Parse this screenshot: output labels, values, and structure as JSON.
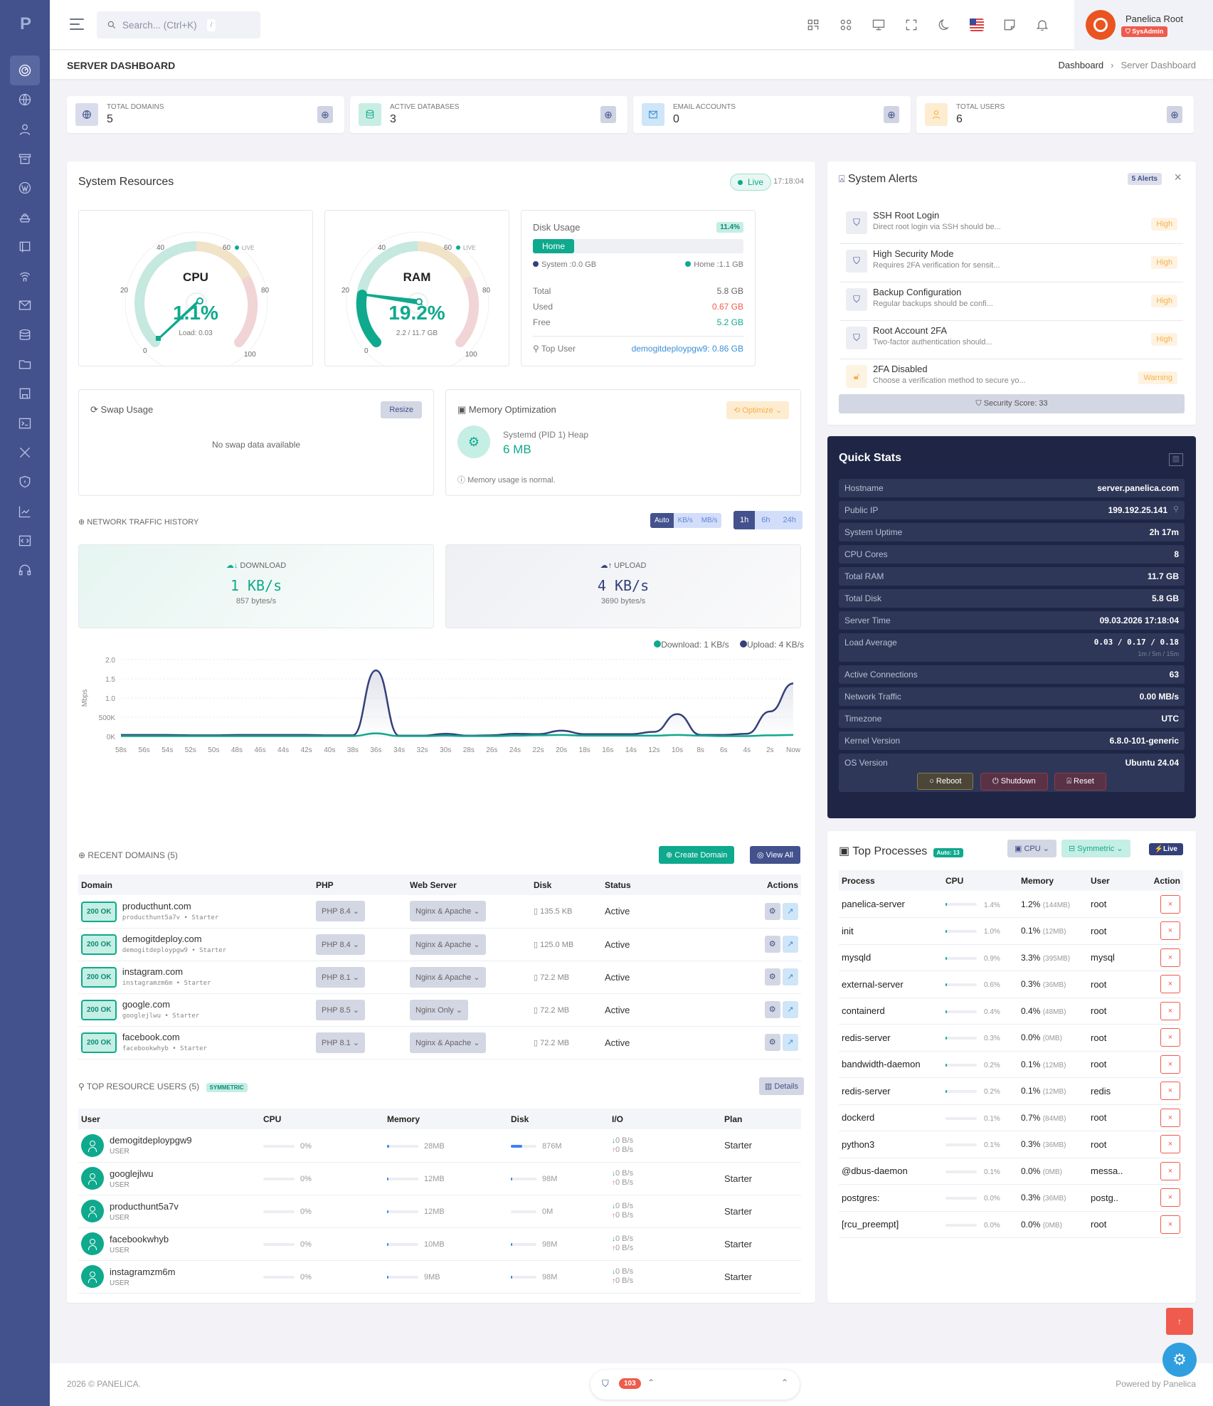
{
  "header": {
    "search_placeholder": "Search... (Ctrl+K)",
    "search_kbd": "/",
    "user_name": "Panelica Root",
    "user_role": "SysAdmin",
    "icons": [
      "qr-icon",
      "apps-icon",
      "monitor-icon",
      "fullscreen-icon",
      "moon-icon",
      "flag-us-icon",
      "note-icon",
      "bell-icon"
    ]
  },
  "sidebar": {
    "items": [
      "dashboard",
      "domains",
      "users",
      "packages",
      "wordpress",
      "docker",
      "backups",
      "wireless",
      "email",
      "databases",
      "files",
      "storage",
      "terminal",
      "tools",
      "security",
      "statistics",
      "developer",
      "support"
    ]
  },
  "page": {
    "title": "SERVER DASHBOARD",
    "breadcrumb": [
      "Dashboard",
      "Server Dashboard"
    ]
  },
  "stats": [
    {
      "label": "TOTAL DOMAINS",
      "value": "5",
      "color": "#43518d",
      "bg": "#d9dcea"
    },
    {
      "label": "ACTIVE DATABASES",
      "value": "3",
      "color": "#0fa98d",
      "bg": "#c8eee4"
    },
    {
      "label": "EMAIL ACCOUNTS",
      "value": "0",
      "color": "#3b8fd8",
      "bg": "#cfe5f8"
    },
    {
      "label": "TOTAL USERS",
      "value": "6",
      "color": "#f5b14a",
      "bg": "#fdecd0"
    }
  ],
  "system_resources": {
    "title": "System Resources",
    "live_label": "Live",
    "time": "17:18:04",
    "cpu": {
      "label": "CPU",
      "value": "1.1%",
      "sub": "Load: 0.03",
      "live": "LIVE",
      "ticks": [
        "0",
        "20",
        "40",
        "60",
        "80",
        "100"
      ]
    },
    "ram": {
      "label": "RAM",
      "value": "19.2%",
      "sub": "2.2 / 11.7 GB",
      "live": "LIVE",
      "ticks": [
        "0",
        "20",
        "40",
        "60",
        "80",
        "100"
      ]
    },
    "disk": {
      "title": "Disk Usage",
      "percent": "11.4%",
      "bar_label": "Home",
      "legend_system": "System :0.0 GB",
      "legend_home": "Home :1.1 GB",
      "total_label": "Total",
      "total": "5.8 GB",
      "used_label": "Used",
      "used": "0.67 GB",
      "free_label": "Free",
      "free": "5.2 GB",
      "top_user_label": "Top User",
      "top_user": "demogitdeploypgw9: 0.86 GB"
    },
    "swap": {
      "title": "Swap Usage",
      "resize_label": "Resize",
      "empty": "No swap data available"
    },
    "memory_opt": {
      "title": "Memory Optimization",
      "optimize_label": "Optimize",
      "process": "Systemd (PID 1) Heap",
      "value": "6 MB",
      "status": "Memory usage is normal."
    }
  },
  "network": {
    "title": "NETWORK TRAFFIC HISTORY",
    "unit_buttons": [
      "Auto",
      "KB/s",
      "MB/s"
    ],
    "range_buttons": [
      "1h",
      "6h",
      "24h"
    ],
    "download_label": "DOWNLOAD",
    "download_value": "1 KB/s",
    "download_bytes": "857 bytes/s",
    "upload_label": "UPLOAD",
    "upload_value": "4 KB/s",
    "upload_bytes": "3690 bytes/s",
    "legend_download": "Download: 1 KB/s",
    "legend_upload": "Upload: 4 KB/s"
  },
  "chart_data": {
    "type": "line",
    "title": "Network Traffic History",
    "xlabel": "",
    "ylabel": "Mbps",
    "y_tick_labels": [
      "0K",
      "500K",
      "1.0",
      "1.5",
      "2.0"
    ],
    "ylim": [
      0,
      2.0
    ],
    "x": [
      "58s",
      "56s",
      "54s",
      "52s",
      "50s",
      "48s",
      "46s",
      "44s",
      "42s",
      "40s",
      "38s",
      "36s",
      "34s",
      "32s",
      "30s",
      "28s",
      "26s",
      "24s",
      "22s",
      "20s",
      "18s",
      "16s",
      "14s",
      "12s",
      "10s",
      "8s",
      "6s",
      "4s",
      "2s",
      "Now"
    ],
    "series": [
      {
        "name": "Download",
        "color": "#0fa98d",
        "values": [
          0.01,
          0.01,
          0.01,
          0.01,
          0.01,
          0.01,
          0.01,
          0.01,
          0.01,
          0.01,
          0.01,
          0.08,
          0.01,
          0.01,
          0.02,
          0.01,
          0.01,
          0.02,
          0.03,
          0.04,
          0.02,
          0.02,
          0.02,
          0.02,
          0.04,
          0.02,
          0.01,
          0.01,
          0.03,
          0.04
        ]
      },
      {
        "name": "Upload",
        "color": "#34407a",
        "values": [
          0.04,
          0.04,
          0.04,
          0.03,
          0.03,
          0.04,
          0.04,
          0.04,
          0.04,
          0.03,
          0.03,
          1.72,
          0.02,
          0.02,
          0.07,
          0.02,
          0.03,
          0.07,
          0.06,
          0.15,
          0.06,
          0.06,
          0.06,
          0.12,
          0.58,
          0.04,
          0.04,
          0.07,
          0.65,
          1.38
        ]
      }
    ],
    "grid": true,
    "legend_position": "top-right"
  },
  "domains": {
    "title": "RECENT DOMAINS (5)",
    "create_label": "Create Domain",
    "view_all_label": "View All",
    "columns": [
      "Domain",
      "PHP",
      "Web Server",
      "Disk",
      "Status",
      "Actions"
    ],
    "rows": [
      {
        "status_code": "200 OK",
        "name": "producthunt.com",
        "user": "producthunt5a7v • Starter",
        "php": "PHP 8.4",
        "server": "Nginx & Apache",
        "disk": "135.5 KB",
        "status": "Active"
      },
      {
        "status_code": "200 OK",
        "name": "demogitdeploy.com",
        "user": "demogitdeploypgw9 • Starter",
        "php": "PHP 8.4",
        "server": "Nginx & Apache",
        "disk": "125.0 MB",
        "status": "Active"
      },
      {
        "status_code": "200 OK",
        "name": "instagram.com",
        "user": "instagramzm6m • Starter",
        "php": "PHP 8.1",
        "server": "Nginx & Apache",
        "disk": "72.2 MB",
        "status": "Active"
      },
      {
        "status_code": "200 OK",
        "name": "google.com",
        "user": "googlejlwu • Starter",
        "php": "PHP 8.5",
        "server": "Nginx Only",
        "disk": "72.2 MB",
        "status": "Active"
      },
      {
        "status_code": "200 OK",
        "name": "facebook.com",
        "user": "facebookwhyb • Starter",
        "php": "PHP 8.1",
        "server": "Nginx & Apache",
        "disk": "72.2 MB",
        "status": "Active"
      }
    ]
  },
  "resource_users": {
    "title": "TOP RESOURCE USERS (5)",
    "badge": "SYMMETRIC",
    "details_label": "Details",
    "columns": [
      "User",
      "CPU",
      "Memory",
      "Disk",
      "I/O",
      "Plan"
    ],
    "rows": [
      {
        "name": "demogitdeploypgw9",
        "role": "USER",
        "cpu": "0%",
        "mem": "28MB",
        "disk": "876M",
        "io_down": "0 B/s",
        "io_up": "0 B/s",
        "plan": "Starter",
        "disk_pct": 45,
        "mem_pct": 3
      },
      {
        "name": "googlejlwu",
        "role": "USER",
        "cpu": "0%",
        "mem": "12MB",
        "disk": "98M",
        "io_down": "0 B/s",
        "io_up": "0 B/s",
        "plan": "Starter",
        "disk_pct": 5,
        "mem_pct": 2
      },
      {
        "name": "producthunt5a7v",
        "role": "USER",
        "cpu": "0%",
        "mem": "12MB",
        "disk": "0M",
        "io_down": "0 B/s",
        "io_up": "0 B/s",
        "plan": "Starter",
        "disk_pct": 0,
        "mem_pct": 2
      },
      {
        "name": "facebookwhyb",
        "role": "USER",
        "cpu": "0%",
        "mem": "10MB",
        "disk": "98M",
        "io_down": "0 B/s",
        "io_up": "0 B/s",
        "plan": "Starter",
        "disk_pct": 5,
        "mem_pct": 2
      },
      {
        "name": "instagramzm6m",
        "role": "USER",
        "cpu": "0%",
        "mem": "9MB",
        "disk": "98M",
        "io_down": "0 B/s",
        "io_up": "0 B/s",
        "plan": "Starter",
        "disk_pct": 5,
        "mem_pct": 2
      }
    ]
  },
  "alerts": {
    "title": "System Alerts",
    "count_label": "5 Alerts",
    "items": [
      {
        "title": "SSH Root Login",
        "desc": "Direct root login via SSH should be...",
        "level": "High"
      },
      {
        "title": "High Security Mode",
        "desc": "Requires 2FA verification for sensit...",
        "level": "High"
      },
      {
        "title": "Backup Configuration",
        "desc": "Regular backups should be confi...",
        "level": "High"
      },
      {
        "title": "Root Account 2FA",
        "desc": "Two-factor authentication should...",
        "level": "High"
      },
      {
        "title": "2FA Disabled",
        "desc": "Choose a verification method to secure yo...",
        "level": "Warning"
      }
    ],
    "security_score": "Security Score: 33"
  },
  "quick_stats": {
    "title": "Quick Stats",
    "rows": [
      {
        "k": "Hostname",
        "v": "server.panelica.com"
      },
      {
        "k": "Public IP",
        "v": "199.192.25.141"
      },
      {
        "k": "System Uptime",
        "v": "2h 17m"
      },
      {
        "k": "CPU Cores",
        "v": "8"
      },
      {
        "k": "Total RAM",
        "v": "11.7 GB"
      },
      {
        "k": "Total Disk",
        "v": "5.8 GB"
      },
      {
        "k": "Server Time",
        "v": "09.03.2026 17:18:04"
      },
      {
        "k": "Load Average",
        "v": "0.03 / 0.17 / 0.18",
        "sub": "1m / 5m / 15m"
      },
      {
        "k": "Active Connections",
        "v": "63"
      },
      {
        "k": "Network Traffic",
        "v": "0.00 MB/s"
      },
      {
        "k": "Timezone",
        "v": "UTC"
      },
      {
        "k": "Kernel Version",
        "v": "6.8.0-101-generic"
      },
      {
        "k": "OS Version",
        "v": "Ubuntu 24.04"
      }
    ],
    "reboot_label": "Reboot",
    "shutdown_label": "Shutdown",
    "reset_label": "Reset"
  },
  "processes": {
    "title": "Top Processes",
    "auto_badge": "Auto: 13",
    "sort_label": "CPU",
    "view_label": "Symmetric",
    "live_label": "Live",
    "columns": [
      "Process",
      "CPU",
      "Memory",
      "User",
      "Action"
    ],
    "rows": [
      {
        "name": "panelica-server",
        "cpu": "1.4%",
        "mem": "1.2%",
        "mem_abs": "(144MB)",
        "user": "root"
      },
      {
        "name": "init",
        "cpu": "1.0%",
        "mem": "0.1%",
        "mem_abs": "(12MB)",
        "user": "root"
      },
      {
        "name": "mysqld",
        "cpu": "0.9%",
        "mem": "3.3%",
        "mem_abs": "(395MB)",
        "user": "mysql"
      },
      {
        "name": "external-server",
        "cpu": "0.6%",
        "mem": "0.3%",
        "mem_abs": "(36MB)",
        "user": "root"
      },
      {
        "name": "containerd",
        "cpu": "0.4%",
        "mem": "0.4%",
        "mem_abs": "(48MB)",
        "user": "root"
      },
      {
        "name": "redis-server",
        "cpu": "0.3%",
        "mem": "0.0%",
        "mem_abs": "(0MB)",
        "user": "root"
      },
      {
        "name": "bandwidth-daemon",
        "cpu": "0.2%",
        "mem": "0.1%",
        "mem_abs": "(12MB)",
        "user": "root"
      },
      {
        "name": "redis-server",
        "cpu": "0.2%",
        "mem": "0.1%",
        "mem_abs": "(12MB)",
        "user": "redis"
      },
      {
        "name": "dockerd",
        "cpu": "0.1%",
        "mem": "0.7%",
        "mem_abs": "(84MB)",
        "user": "root"
      },
      {
        "name": "python3",
        "cpu": "0.1%",
        "mem": "0.3%",
        "mem_abs": "(36MB)",
        "user": "root"
      },
      {
        "name": "@dbus-daemon",
        "cpu": "0.1%",
        "mem": "0.0%",
        "mem_abs": "(0MB)",
        "user": "messa.."
      },
      {
        "name": "postgres:",
        "cpu": "0.0%",
        "mem": "0.3%",
        "mem_abs": "(36MB)",
        "user": "postg.."
      },
      {
        "name": "[rcu_preempt]",
        "cpu": "0.0%",
        "mem": "0.0%",
        "mem_abs": "(0MB)",
        "user": "root"
      }
    ]
  },
  "footer": {
    "copyright": "2026 © PANELICA.",
    "powered": "Powered by Panelica",
    "security_count": "103"
  }
}
